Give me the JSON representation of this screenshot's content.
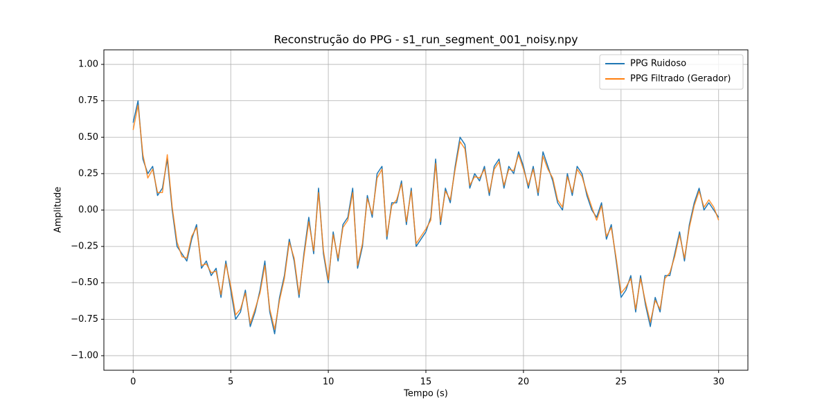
{
  "chart_data": {
    "type": "line",
    "title": "Reconstrução do PPG - s1_run_segment_001_noisy.npy",
    "x_label": "Tempo (s)",
    "y_label": "Amplitude",
    "x": [
      0,
      0.25,
      0.5,
      0.75,
      1,
      1.25,
      1.5,
      1.75,
      2,
      2.25,
      2.5,
      2.75,
      3,
      3.25,
      3.5,
      3.75,
      4,
      4.25,
      4.5,
      4.75,
      5,
      5.25,
      5.5,
      5.75,
      6,
      6.25,
      6.5,
      6.75,
      7,
      7.25,
      7.5,
      7.75,
      8,
      8.25,
      8.5,
      8.75,
      9,
      9.25,
      9.5,
      9.75,
      10,
      10.25,
      10.5,
      10.75,
      11,
      11.25,
      11.5,
      11.75,
      12,
      12.25,
      12.5,
      12.75,
      13,
      13.25,
      13.5,
      13.75,
      14,
      14.25,
      14.5,
      14.75,
      15,
      15.25,
      15.5,
      15.75,
      16,
      16.25,
      16.5,
      16.75,
      17,
      17.25,
      17.5,
      17.75,
      18,
      18.25,
      18.5,
      18.75,
      19,
      19.25,
      19.5,
      19.75,
      20,
      20.25,
      20.5,
      20.75,
      21,
      21.25,
      21.5,
      21.75,
      22,
      22.25,
      22.5,
      22.75,
      23,
      23.25,
      23.5,
      23.75,
      24,
      24.25,
      24.5,
      24.75,
      25,
      25.25,
      25.5,
      25.75,
      26,
      26.25,
      26.5,
      26.75,
      27,
      27.25,
      27.5,
      27.75,
      28,
      28.25,
      28.5,
      28.75,
      29,
      29.25,
      29.5,
      29.75,
      30
    ],
    "series": [
      {
        "name": "PPG Ruidoso",
        "color": "#1f77b4",
        "values": [
          0.6,
          0.75,
          0.35,
          0.25,
          0.3,
          0.1,
          0.15,
          0.35,
          0.0,
          -0.25,
          -0.3,
          -0.35,
          -0.2,
          -0.1,
          -0.4,
          -0.35,
          -0.45,
          -0.4,
          -0.6,
          -0.35,
          -0.55,
          -0.75,
          -0.7,
          -0.55,
          -0.8,
          -0.7,
          -0.55,
          -0.35,
          -0.7,
          -0.85,
          -0.6,
          -0.45,
          -0.2,
          -0.35,
          -0.6,
          -0.3,
          -0.05,
          -0.3,
          0.15,
          -0.3,
          -0.5,
          -0.15,
          -0.35,
          -0.1,
          -0.05,
          0.15,
          -0.4,
          -0.25,
          0.1,
          -0.05,
          0.25,
          0.3,
          -0.2,
          0.05,
          0.05,
          0.2,
          -0.1,
          0.15,
          -0.25,
          -0.2,
          -0.15,
          -0.05,
          0.35,
          -0.1,
          0.15,
          0.05,
          0.3,
          0.5,
          0.45,
          0.15,
          0.25,
          0.2,
          0.3,
          0.1,
          0.3,
          0.35,
          0.15,
          0.3,
          0.25,
          0.4,
          0.3,
          0.15,
          0.3,
          0.1,
          0.4,
          0.3,
          0.2,
          0.05,
          0.0,
          0.25,
          0.1,
          0.3,
          0.25,
          0.1,
          0.0,
          -0.05,
          0.05,
          -0.2,
          -0.1,
          -0.35,
          -0.6,
          -0.55,
          -0.45,
          -0.7,
          -0.45,
          -0.65,
          -0.8,
          -0.6,
          -0.7,
          -0.45,
          -0.45,
          -0.3,
          -0.15,
          -0.35,
          -0.1,
          0.05,
          0.15,
          0.0,
          0.05,
          0.0,
          -0.05
        ]
      },
      {
        "name": "PPG Filtrado (Gerador)",
        "color": "#ff7f0e",
        "values": [
          0.55,
          0.72,
          0.38,
          0.22,
          0.28,
          0.12,
          0.12,
          0.38,
          0.02,
          -0.22,
          -0.32,
          -0.33,
          -0.18,
          -0.12,
          -0.38,
          -0.37,
          -0.43,
          -0.42,
          -0.58,
          -0.37,
          -0.52,
          -0.72,
          -0.68,
          -0.57,
          -0.78,
          -0.68,
          -0.57,
          -0.38,
          -0.68,
          -0.82,
          -0.62,
          -0.47,
          -0.22,
          -0.33,
          -0.58,
          -0.32,
          -0.08,
          -0.28,
          0.12,
          -0.28,
          -0.48,
          -0.17,
          -0.33,
          -0.12,
          -0.07,
          0.12,
          -0.38,
          -0.23,
          0.08,
          -0.03,
          0.22,
          0.28,
          -0.18,
          0.03,
          0.07,
          0.18,
          -0.08,
          0.13,
          -0.23,
          -0.18,
          -0.13,
          -0.07,
          0.32,
          -0.08,
          0.13,
          0.07,
          0.28,
          0.47,
          0.42,
          0.17,
          0.23,
          0.22,
          0.28,
          0.12,
          0.28,
          0.33,
          0.17,
          0.28,
          0.27,
          0.38,
          0.28,
          0.17,
          0.28,
          0.12,
          0.37,
          0.28,
          0.22,
          0.07,
          0.02,
          0.23,
          0.12,
          0.28,
          0.23,
          0.12,
          0.02,
          -0.07,
          0.03,
          -0.18,
          -0.12,
          -0.33,
          -0.57,
          -0.53,
          -0.47,
          -0.68,
          -0.47,
          -0.63,
          -0.77,
          -0.62,
          -0.68,
          -0.47,
          -0.43,
          -0.32,
          -0.17,
          -0.33,
          -0.12,
          0.03,
          0.13,
          0.02,
          0.07,
          0.02,
          -0.07
        ]
      }
    ],
    "xlim": [
      -1.5,
      31.5
    ],
    "xticks": [
      0,
      5,
      10,
      15,
      20,
      25,
      30
    ],
    "ylim": [
      -1.1,
      1.1
    ],
    "yticks": [
      {
        "value": -1,
        "label": "−1.00"
      },
      {
        "value": -0.75,
        "label": "−0.75"
      },
      {
        "value": -0.5,
        "label": "−0.50"
      },
      {
        "value": -0.25,
        "label": "−0.25"
      },
      {
        "value": 0,
        "label": "0.00"
      },
      0.25,
      {
        "value": 0.5,
        "label": "0.50"
      },
      0.75,
      {
        "value": 1,
        "label": "1.00"
      }
    ],
    "grid": true,
    "legend": "upper right"
  }
}
